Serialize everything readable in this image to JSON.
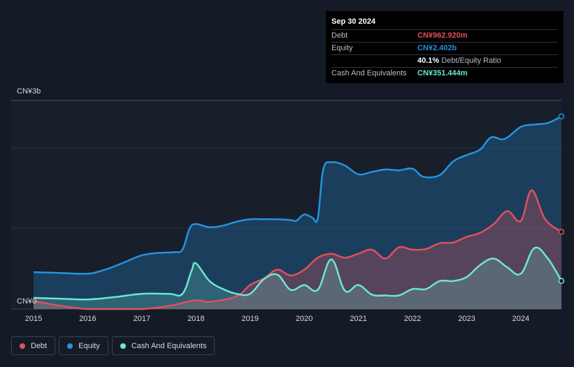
{
  "tooltip": {
    "date": "Sep 30 2024",
    "rows": [
      {
        "label": "Debt",
        "value": "CN¥962.920m",
        "color": "#e2505c",
        "suffix": ""
      },
      {
        "label": "Equity",
        "value": "CN¥2.402b",
        "color": "#2394df",
        "suffix": ""
      },
      {
        "label": "",
        "value": "40.1%",
        "color": "#ffffff",
        "suffix": "Debt/Equity Ratio"
      },
      {
        "label": "Cash And Equivalents",
        "value": "CN¥351.444m",
        "color": "#6ee6d2",
        "suffix": ""
      }
    ]
  },
  "legend": [
    {
      "label": "Debt",
      "color": "#e2505c"
    },
    {
      "label": "Equity",
      "color": "#2394df"
    },
    {
      "label": "Cash And Equivalents",
      "color": "#6ee6d2"
    }
  ],
  "chart_data": {
    "type": "area",
    "title": "",
    "xlabel": "",
    "ylabel": "",
    "ylim": [
      0,
      2.6
    ],
    "y_unit": "CN¥ billions",
    "y_tick_labels": [
      {
        "value": 0,
        "label": "CN¥0"
      },
      {
        "value": 2.6,
        "label": "CN¥3b"
      }
    ],
    "x_tick_labels": [
      "2015",
      "2016",
      "2017",
      "2018",
      "2019",
      "2020",
      "2021",
      "2022",
      "2023",
      "2024"
    ],
    "xlim": [
      2015.0,
      2024.75
    ],
    "grid": true,
    "legend_position": "bottom-left",
    "series": [
      {
        "name": "Equity",
        "color": "#2394df",
        "points": [
          [
            2015.0,
            0.46
          ],
          [
            2015.5,
            0.45
          ],
          [
            2015.9,
            0.44
          ],
          [
            2016.1,
            0.45
          ],
          [
            2016.4,
            0.51
          ],
          [
            2016.7,
            0.59
          ],
          [
            2017.0,
            0.67
          ],
          [
            2017.3,
            0.7
          ],
          [
            2017.6,
            0.71
          ],
          [
            2017.75,
            0.74
          ],
          [
            2017.88,
            1.0
          ],
          [
            2018.0,
            1.06
          ],
          [
            2018.25,
            1.02
          ],
          [
            2018.5,
            1.04
          ],
          [
            2018.75,
            1.09
          ],
          [
            2019.0,
            1.12
          ],
          [
            2019.25,
            1.12
          ],
          [
            2019.5,
            1.12
          ],
          [
            2019.75,
            1.11
          ],
          [
            2019.85,
            1.1
          ],
          [
            2020.0,
            1.18
          ],
          [
            2020.15,
            1.14
          ],
          [
            2020.25,
            1.13
          ],
          [
            2020.35,
            1.74
          ],
          [
            2020.5,
            1.83
          ],
          [
            2020.75,
            1.79
          ],
          [
            2021.0,
            1.68
          ],
          [
            2021.25,
            1.71
          ],
          [
            2021.5,
            1.74
          ],
          [
            2021.75,
            1.73
          ],
          [
            2022.0,
            1.75
          ],
          [
            2022.2,
            1.65
          ],
          [
            2022.5,
            1.67
          ],
          [
            2022.75,
            1.84
          ],
          [
            2023.0,
            1.92
          ],
          [
            2023.25,
            1.99
          ],
          [
            2023.45,
            2.14
          ],
          [
            2023.7,
            2.12
          ],
          [
            2024.0,
            2.27
          ],
          [
            2024.25,
            2.3
          ],
          [
            2024.5,
            2.32
          ],
          [
            2024.75,
            2.402
          ]
        ]
      },
      {
        "name": "Debt",
        "color": "#e2505c",
        "points": [
          [
            2015.0,
            0.1
          ],
          [
            2015.5,
            0.04
          ],
          [
            2016.0,
            0.0
          ],
          [
            2016.5,
            0.0
          ],
          [
            2017.0,
            0.0
          ],
          [
            2017.5,
            0.04
          ],
          [
            2018.0,
            0.11
          ],
          [
            2018.25,
            0.09
          ],
          [
            2018.75,
            0.16
          ],
          [
            2019.0,
            0.3
          ],
          [
            2019.25,
            0.38
          ],
          [
            2019.5,
            0.49
          ],
          [
            2019.75,
            0.42
          ],
          [
            2020.0,
            0.49
          ],
          [
            2020.25,
            0.64
          ],
          [
            2020.5,
            0.69
          ],
          [
            2020.75,
            0.64
          ],
          [
            2021.0,
            0.69
          ],
          [
            2021.25,
            0.74
          ],
          [
            2021.5,
            0.63
          ],
          [
            2021.75,
            0.77
          ],
          [
            2022.0,
            0.74
          ],
          [
            2022.25,
            0.75
          ],
          [
            2022.5,
            0.82
          ],
          [
            2022.75,
            0.83
          ],
          [
            2023.0,
            0.9
          ],
          [
            2023.25,
            0.95
          ],
          [
            2023.5,
            1.06
          ],
          [
            2023.75,
            1.22
          ],
          [
            2024.0,
            1.1
          ],
          [
            2024.2,
            1.48
          ],
          [
            2024.45,
            1.12
          ],
          [
            2024.75,
            0.963
          ]
        ]
      },
      {
        "name": "Cash And Equivalents",
        "color": "#6ee6d2",
        "points": [
          [
            2015.0,
            0.14
          ],
          [
            2015.5,
            0.13
          ],
          [
            2016.0,
            0.12
          ],
          [
            2016.5,
            0.15
          ],
          [
            2017.0,
            0.19
          ],
          [
            2017.5,
            0.19
          ],
          [
            2017.75,
            0.19
          ],
          [
            2017.92,
            0.48
          ],
          [
            2018.0,
            0.57
          ],
          [
            2018.25,
            0.35
          ],
          [
            2018.5,
            0.25
          ],
          [
            2018.75,
            0.19
          ],
          [
            2019.0,
            0.19
          ],
          [
            2019.25,
            0.37
          ],
          [
            2019.5,
            0.43
          ],
          [
            2019.75,
            0.24
          ],
          [
            2020.0,
            0.3
          ],
          [
            2020.25,
            0.24
          ],
          [
            2020.5,
            0.62
          ],
          [
            2020.75,
            0.23
          ],
          [
            2021.0,
            0.3
          ],
          [
            2021.25,
            0.18
          ],
          [
            2021.5,
            0.17
          ],
          [
            2021.75,
            0.17
          ],
          [
            2022.0,
            0.25
          ],
          [
            2022.25,
            0.25
          ],
          [
            2022.5,
            0.35
          ],
          [
            2022.75,
            0.35
          ],
          [
            2023.0,
            0.4
          ],
          [
            2023.25,
            0.55
          ],
          [
            2023.5,
            0.63
          ],
          [
            2023.75,
            0.52
          ],
          [
            2024.0,
            0.44
          ],
          [
            2024.25,
            0.76
          ],
          [
            2024.5,
            0.63
          ],
          [
            2024.75,
            0.351
          ]
        ]
      }
    ]
  }
}
